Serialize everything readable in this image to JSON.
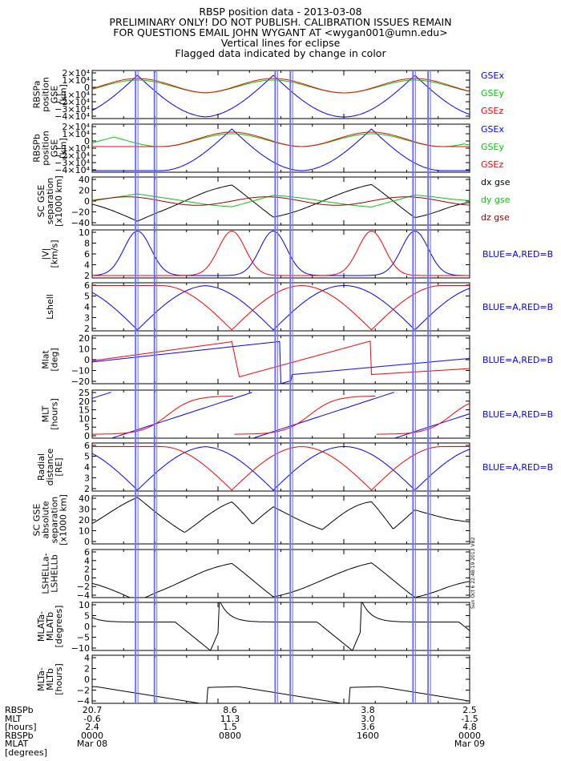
{
  "header": {
    "lines": [
      "RBSP position data - 2013-03-08",
      "PRELIMINARY ONLY! DO NOT PUBLISH. CALIBRATION ISSUES REMAIN",
      "FOR QUESTIONS EMAIL JOHN WYGANT AT <wygan001@umn.edu>",
      "Vertical lines for eclipse",
      "Flagged data indicated by change in color"
    ]
  },
  "colors": {
    "blue": "#0000ff",
    "red": "#ff0000",
    "green": "#00cc00",
    "black": "#000000",
    "eclipse": "#7070ff"
  },
  "chart_data": [
    {
      "type": "line",
      "ylabel": [
        "RBSPa",
        "position",
        "GSE",
        "[km]"
      ],
      "ticks": [
        "2×10⁴",
        "1×10⁴",
        "0",
        "−1×10⁴",
        "−2×10⁴",
        "−3×10⁴",
        "−4×10⁴"
      ],
      "ylim": [
        -40000,
        20000
      ],
      "series": [
        {
          "name": "GSEx",
          "color": "#0000ff"
        },
        {
          "name": "GSEy",
          "color": "#00cc00"
        },
        {
          "name": "GSEz",
          "color": "#ff0000"
        }
      ]
    },
    {
      "type": "line",
      "ylabel": [
        "RBSPb",
        "position",
        "GSE",
        "[km]"
      ],
      "ticks": [
        "2×10⁴",
        "1×10⁴",
        "0",
        "−1×10⁴",
        "−2×10⁴",
        "−3×10⁴",
        "−4×10⁴"
      ],
      "ylim": [
        -40000,
        20000
      ],
      "series": [
        {
          "name": "GSEx",
          "color": "#0000ff"
        },
        {
          "name": "GSEy",
          "color": "#00cc00"
        },
        {
          "name": "GSEz",
          "color": "#ff0000"
        }
      ]
    },
    {
      "type": "line",
      "ylabel": [
        "SC GSE",
        "separation",
        "[x1000 km]"
      ],
      "ticks": [
        "40",
        "20",
        "0",
        "−20",
        "−40"
      ],
      "ylim": [
        -40,
        40
      ],
      "series": [
        {
          "name": "dx gse",
          "color": "#000000"
        },
        {
          "name": "dy gse",
          "color": "#00cc00"
        },
        {
          "name": "dz gse",
          "color": "#a00000"
        }
      ]
    },
    {
      "type": "line",
      "ylabel": [
        "|V|",
        "[km/s]"
      ],
      "ticks": [
        "10",
        "8",
        "6",
        "4",
        "2"
      ],
      "ylim": [
        2,
        10
      ],
      "legend": "BLUE=A,RED=B"
    },
    {
      "type": "line",
      "ylabel": [
        "Lshell"
      ],
      "ticks": [
        "6",
        "5",
        "4",
        "3",
        "2"
      ],
      "ylim": [
        1.2,
        6.4
      ],
      "legend": "BLUE=A,RED=B"
    },
    {
      "type": "line",
      "ylabel": [
        "Mlat",
        "[deg]"
      ],
      "ticks": [
        "20",
        "10",
        "0",
        "−10",
        "−20"
      ],
      "ylim": [
        -20,
        22
      ],
      "legend": "BLUE=A,RED=B"
    },
    {
      "type": "line",
      "ylabel": [
        "MLT",
        "[hours]"
      ],
      "ticks": [
        "25",
        "20",
        "15",
        "10",
        "5",
        "0"
      ],
      "ylim": [
        0,
        25
      ],
      "legend": "BLUE=A,RED=B"
    },
    {
      "type": "line",
      "ylabel": [
        "Radial",
        "distance",
        "[RE]"
      ],
      "ticks": [
        "6",
        "5",
        "4",
        "3",
        "2"
      ],
      "ylim": [
        1,
        6.3
      ],
      "legend": "BLUE=A,RED=B"
    },
    {
      "type": "line",
      "ylabel": [
        "SC GSE",
        "absolute",
        "separation",
        "[x1000 km]"
      ],
      "ticks": [
        "40",
        "30",
        "20",
        "10",
        "0"
      ],
      "ylim": [
        0,
        42
      ]
    },
    {
      "type": "line",
      "ylabel": [
        "LSHELLa-",
        "LSHELLb"
      ],
      "ticks": [
        "6",
        "4",
        "2",
        "0",
        "−2",
        "−4"
      ],
      "ylim": [
        -4.5,
        6.5
      ]
    },
    {
      "type": "line",
      "ylabel": [
        "MLATa-",
        "MLATb",
        "[degrees]"
      ],
      "ticks": [
        "10",
        "5",
        "0",
        "−5",
        "−10"
      ],
      "ylim": [
        -11,
        11
      ]
    },
    {
      "type": "line",
      "ylabel": [
        "MLTa-",
        "MLTb",
        "[hours]"
      ],
      "ticks": [
        "4",
        "2",
        "0",
        "−2",
        "−4"
      ],
      "ylim": [
        -4.5,
        5
      ]
    }
  ],
  "footer": {
    "row_labels": "RBSPb\nMLT\n[hours]\nRBSPb\nMLAT\n[degrees]",
    "columns": [
      {
        "v1": "20.7",
        "v2": "-0.6",
        "v3": "2.4",
        "t": "0000",
        "d": "Mar 08"
      },
      {
        "v1": "8.6",
        "v2": "11.3",
        "v3": "1.5",
        "t": "0800",
        "d": ""
      },
      {
        "v1": "3.8",
        "v2": "3.0",
        "v3": "3.6",
        "t": "1600",
        "d": ""
      },
      {
        "v1": "2.5",
        "v2": "-1.5",
        "v3": "4.8",
        "t": "0000",
        "d": "Mar 09"
      }
    ]
  },
  "stamp": "Sun Oct 6 22:48:19 2013 VB2"
}
